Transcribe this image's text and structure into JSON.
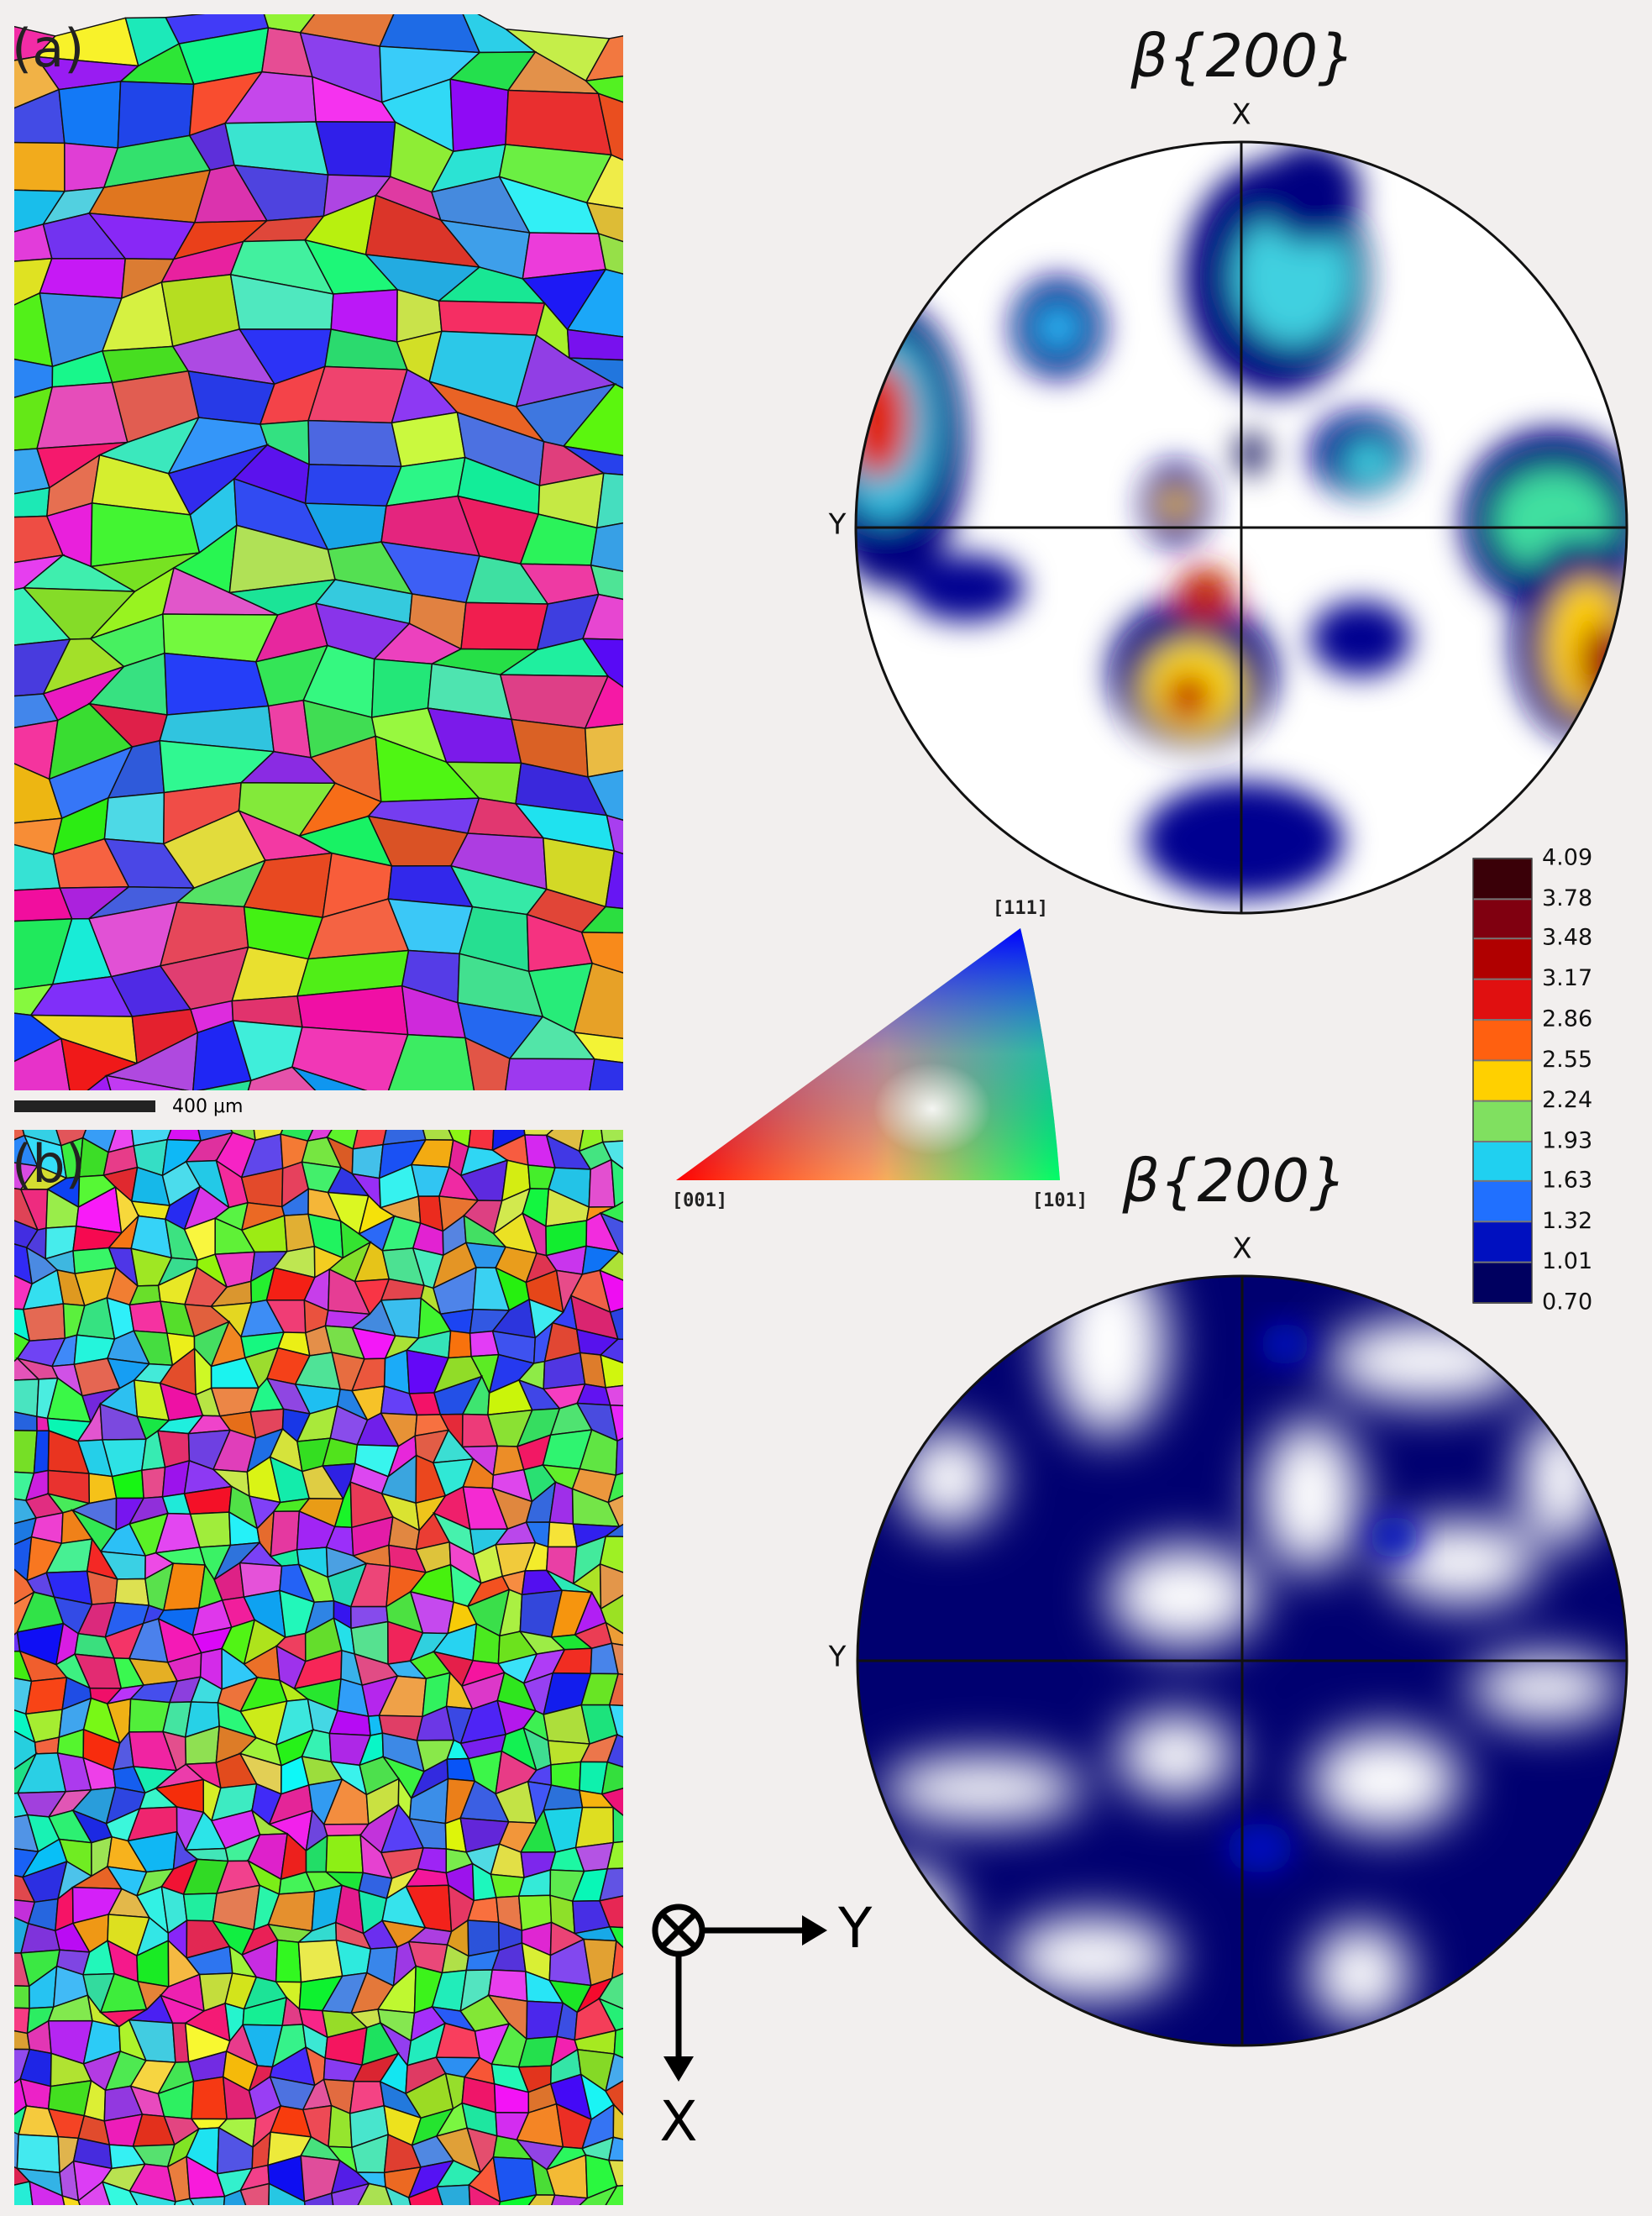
{
  "panel_a": {
    "label": "(a)",
    "scale_bar": "400 μm",
    "pole_figure": {
      "title": "β{200}",
      "x_axis": "X",
      "y_axis": "Y"
    }
  },
  "panel_b": {
    "label": "(b)",
    "pole_figure": {
      "title": "β{200}",
      "x_axis": "X",
      "y_axis": "Y"
    }
  },
  "ipf_legend": {
    "labels": [
      "[001]",
      "[101]",
      "[111]"
    ]
  },
  "colorbar": {
    "levels": [
      4.09,
      3.78,
      3.48,
      3.17,
      2.86,
      2.55,
      2.24,
      1.93,
      1.63,
      1.32,
      1.01,
      {
        "value": 0.7,
        "label": "0.70"
      }
    ]
  },
  "axes_triad": {
    "x": "X",
    "y": "Y"
  }
}
